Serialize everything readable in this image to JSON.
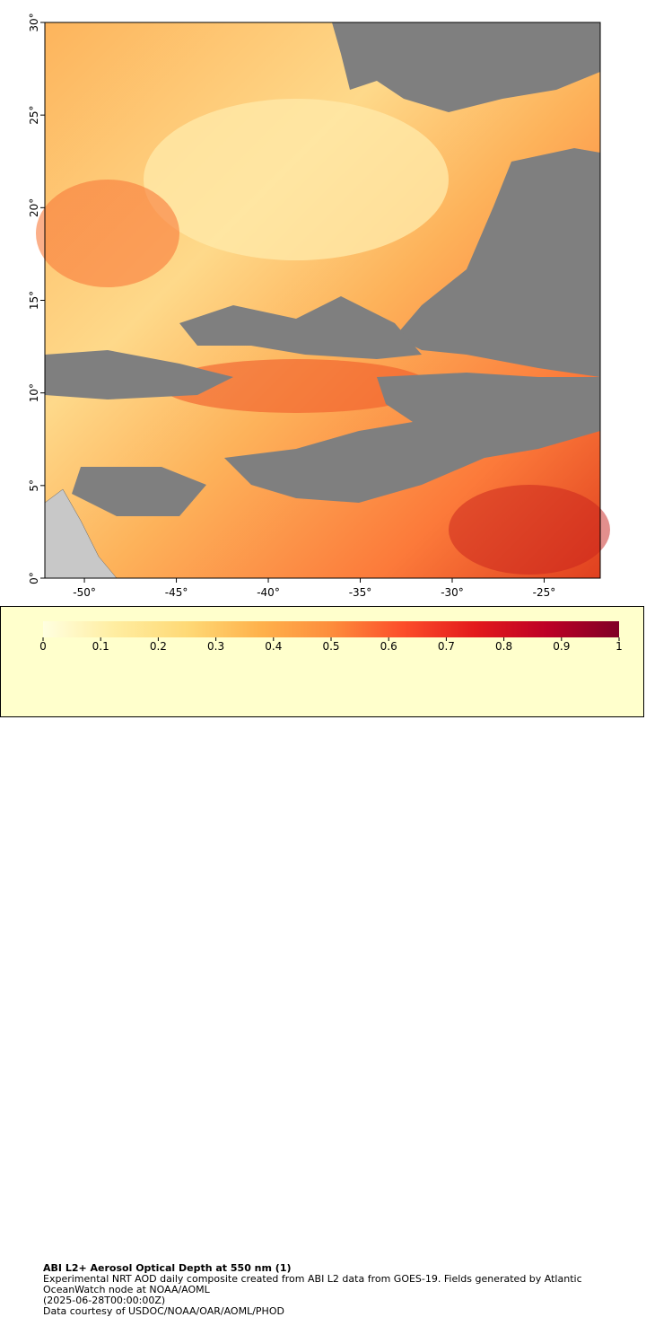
{
  "map": {
    "xlim": [
      -52.15,
      -21.95
    ],
    "ylim": [
      0,
      30
    ],
    "xticks": [
      {
        "value": -50,
        "label": "-50°"
      },
      {
        "value": -45,
        "label": "-45°"
      },
      {
        "value": -40,
        "label": "-40°"
      },
      {
        "value": -35,
        "label": "-35°"
      },
      {
        "value": -30,
        "label": "-30°"
      },
      {
        "value": -25,
        "label": "-25°"
      }
    ],
    "yticks": [
      {
        "value": 0,
        "label": "0°"
      },
      {
        "value": 5,
        "label": "5°"
      },
      {
        "value": 10,
        "label": "10°"
      },
      {
        "value": 15,
        "label": "15°"
      },
      {
        "value": 20,
        "label": "20°"
      },
      {
        "value": 25,
        "label": "25°"
      },
      {
        "value": 30,
        "label": "30°"
      }
    ]
  },
  "colorbar": {
    "range": [
      0,
      1
    ],
    "ticks": [
      0,
      0.1,
      0.2,
      0.3,
      0.4,
      0.5,
      0.6,
      0.7,
      0.8,
      0.9,
      1
    ],
    "colors": [
      "#ffffe0",
      "#ffeda0",
      "#fed976",
      "#feb24c",
      "#fd8d3c",
      "#fc4e2a",
      "#e31a1c",
      "#bd0026",
      "#800026"
    ]
  },
  "caption": {
    "title": "ABI L2+ Aerosol Optical Depth at 550 nm (1)",
    "description": "Experimental NRT AOD daily composite created from ABI L2 data from GOES-19. Fields generated by Atlantic OceanWatch node at NOAA/AOML",
    "timestamp": "(2025-06-28T00:00:00Z)",
    "credit": "Data courtesy of USDOC/NOAA/OAR/AOML/PHOD"
  }
}
